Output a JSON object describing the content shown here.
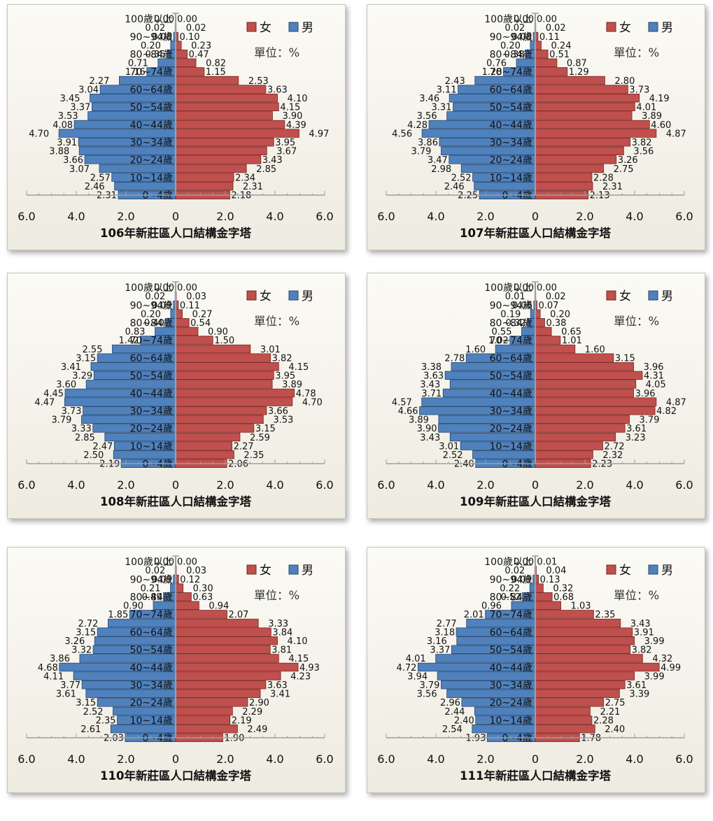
{
  "legend": {
    "female": "女",
    "male": "男"
  },
  "unit_label": "單位：%",
  "colors": {
    "female": "#c0504d",
    "male": "#4f81bd",
    "female_edge": "#7a2523",
    "male_edge": "#25466f",
    "axis": "#9aa0a6"
  },
  "age_labels": [
    "100歲以上",
    "90~94歲",
    "80~84歲",
    "70~74歲",
    "60~64歲",
    "50~54歲",
    "40~44歲",
    "30~34歲",
    "20~24歲",
    "10~14歲",
    "0~4歲"
  ],
  "chart_data": [
    {
      "type": "bar",
      "title": "106年新莊區人口結構金字塔",
      "xticks": [
        "6.0",
        "4.0",
        "2.0",
        "0",
        "2.0",
        "4.0",
        "6.0"
      ],
      "xlim": [
        -6,
        6
      ],
      "age_groups": [
        "100歲以上",
        "95~99歲",
        "90~94歲",
        "85~89歲",
        "80~84歲",
        "75~79歲",
        "70~74歲",
        "65~69歲",
        "60~64歲",
        "55~59歲",
        "50~54歲",
        "45~49歲",
        "40~44歲",
        "35~39歲",
        "30~34歲",
        "25~29歲",
        "20~24歲",
        "15~19歲",
        "10~14歲",
        "5~9歲",
        "0~4歲"
      ],
      "series": [
        {
          "name": "女",
          "values": [
            0.0,
            0.02,
            0.1,
            0.23,
            0.47,
            0.82,
            1.15,
            2.53,
            3.63,
            4.1,
            4.15,
            3.9,
            4.39,
            4.97,
            3.95,
            3.67,
            3.43,
            2.85,
            2.34,
            2.31,
            2.18
          ]
        },
        {
          "name": "男",
          "values": [
            0.0,
            0.02,
            0.08,
            0.2,
            0.35,
            0.71,
            1.16,
            2.27,
            3.04,
            3.45,
            3.37,
            3.53,
            4.08,
            4.7,
            3.91,
            3.88,
            3.66,
            3.07,
            2.57,
            2.46,
            2.31
          ]
        }
      ]
    },
    {
      "type": "bar",
      "title": "107年新莊區人口結構金字塔",
      "xticks": [
        "6.0",
        "4.0",
        "2.0",
        "0",
        "2.0",
        "4.0",
        "6.0"
      ],
      "xlim": [
        -6,
        6
      ],
      "age_groups": [
        "100歲以上",
        "95~99歲",
        "90~94歲",
        "85~89歲",
        "80~84歲",
        "75~79歲",
        "70~74歲",
        "65~69歲",
        "60~64歲",
        "55~59歲",
        "50~54歲",
        "45~49歲",
        "40~44歲",
        "35~39歲",
        "30~34歲",
        "25~29歲",
        "20~24歲",
        "15~19歲",
        "10~14歲",
        "5~9歲",
        "0~4歲"
      ],
      "series": [
        {
          "name": "女",
          "values": [
            0.0,
            0.02,
            0.11,
            0.24,
            0.51,
            0.87,
            1.29,
            2.8,
            3.73,
            4.19,
            4.01,
            3.89,
            4.6,
            4.87,
            3.82,
            3.56,
            3.26,
            2.75,
            2.28,
            2.31,
            2.13
          ]
        },
        {
          "name": "男",
          "values": [
            0.0,
            0.02,
            0.08,
            0.2,
            0.38,
            0.76,
            1.28,
            2.43,
            3.11,
            3.46,
            3.31,
            3.56,
            4.28,
            4.56,
            3.86,
            3.79,
            3.47,
            2.98,
            2.52,
            2.46,
            2.25
          ]
        }
      ]
    },
    {
      "type": "bar",
      "title": "108年新莊區人口結構金字塔",
      "xticks": [
        "6.0",
        "4.0",
        "2.0",
        "0",
        "2.0",
        "4.0",
        "6.0"
      ],
      "xlim": [
        -6,
        6
      ],
      "age_groups": [
        "100歲以上",
        "95~99歲",
        "90~94歲",
        "85~89歲",
        "80~84歲",
        "75~79歲",
        "70~74歲",
        "65~69歲",
        "60~64歲",
        "55~59歲",
        "50~54歲",
        "45~49歲",
        "40~44歲",
        "35~39歲",
        "30~34歲",
        "25~29歲",
        "20~24歲",
        "15~19歲",
        "10~14歲",
        "5~9歲",
        "0~4歲"
      ],
      "series": [
        {
          "name": "女",
          "values": [
            0.0,
            0.03,
            0.11,
            0.27,
            0.54,
            0.9,
            1.5,
            3.01,
            3.82,
            4.15,
            3.95,
            3.89,
            4.78,
            4.7,
            3.66,
            3.53,
            3.15,
            2.59,
            2.27,
            2.35,
            2.06
          ]
        },
        {
          "name": "男",
          "values": [
            0.0,
            0.02,
            0.09,
            0.2,
            0.4,
            0.83,
            1.42,
            2.55,
            3.15,
            3.41,
            3.29,
            3.6,
            4.45,
            4.47,
            3.73,
            3.79,
            3.33,
            2.85,
            2.47,
            2.5,
            2.19
          ]
        }
      ]
    },
    {
      "type": "bar",
      "title": "109年新莊區人口結構金字塔",
      "xticks": [
        "6.0",
        "4.0",
        "2.0",
        "0",
        "2.0",
        "4.0",
        "6.0"
      ],
      "xlim": [
        -6,
        6
      ],
      "age_groups": [
        "100歲以上",
        "95~99歲",
        "90~94歲",
        "85~89歲",
        "80~84歲",
        "75~79歲",
        "70~74歲",
        "65~69歲",
        "60~64歲",
        "55~59歲",
        "50~54歲",
        "45~49歲",
        "40~44歲",
        "35~39歲",
        "30~34歲",
        "25~29歲",
        "20~24歲",
        "15~19歲",
        "10~14歲",
        "5~9歲",
        "0~4歲"
      ],
      "series": [
        {
          "name": "女",
          "values": [
            0.0,
            0.02,
            0.07,
            0.2,
            0.38,
            0.65,
            1.01,
            1.6,
            3.15,
            3.96,
            4.31,
            4.05,
            3.96,
            4.87,
            4.82,
            3.79,
            3.61,
            3.23,
            2.72,
            2.32,
            2.23
          ]
        },
        {
          "name": "男",
          "values": [
            0.0,
            0.01,
            0.06,
            0.19,
            0.32,
            0.55,
            1.02,
            1.6,
            2.78,
            3.38,
            3.63,
            3.43,
            3.71,
            4.57,
            4.66,
            3.89,
            3.9,
            3.43,
            3.01,
            2.52,
            2.4
          ]
        }
      ]
    },
    {
      "type": "bar",
      "title": "110年新莊區人口結構金字塔",
      "xticks": [
        "6.0",
        "4.0",
        "2.0",
        "0",
        "2.0",
        "4.0",
        "6.0"
      ],
      "xlim": [
        -6,
        6
      ],
      "age_groups": [
        "100歲以上",
        "95~99歲",
        "90~94歲",
        "85~89歲",
        "80~84歲",
        "75~79歲",
        "70~74歲",
        "65~69歲",
        "60~64歲",
        "55~59歲",
        "50~54歲",
        "45~49歲",
        "40~44歲",
        "35~39歲",
        "30~34歲",
        "25~29歲",
        "20~24歲",
        "15~19歲",
        "10~14歲",
        "5~9歲",
        "0~4歲"
      ],
      "series": [
        {
          "name": "女",
          "values": [
            0.0,
            0.03,
            0.12,
            0.3,
            0.63,
            0.94,
            2.07,
            3.33,
            3.84,
            4.1,
            3.81,
            4.15,
            4.93,
            4.23,
            3.63,
            3.41,
            2.9,
            2.29,
            2.19,
            2.49,
            1.9
          ]
        },
        {
          "name": "男",
          "values": [
            0.0,
            0.02,
            0.09,
            0.21,
            0.49,
            0.9,
            1.85,
            2.72,
            3.15,
            3.26,
            3.32,
            3.86,
            4.68,
            4.11,
            3.77,
            3.61,
            3.15,
            2.52,
            2.35,
            2.61,
            2.03
          ]
        }
      ]
    },
    {
      "type": "bar",
      "title": "111年新莊區人口結構金字塔",
      "xticks": [
        "6.0",
        "4.0",
        "2.0",
        "0",
        "2.0",
        "4.0",
        "6.0"
      ],
      "xlim": [
        -6,
        6
      ],
      "age_groups": [
        "100歲以上",
        "95~99歲",
        "90~94歲",
        "85~89歲",
        "80~84歲",
        "75~79歲",
        "70~74歲",
        "65~69歲",
        "60~64歲",
        "55~59歲",
        "50~54歲",
        "45~49歲",
        "40~44歲",
        "35~39歲",
        "30~34歲",
        "25~29歲",
        "20~24歲",
        "15~19歲",
        "10~14歲",
        "5~9歲",
        "0~4歲"
      ],
      "series": [
        {
          "name": "女",
          "values": [
            0.01,
            0.04,
            0.13,
            0.32,
            0.68,
            1.03,
            2.35,
            3.43,
            3.91,
            3.99,
            3.82,
            4.32,
            4.99,
            3.99,
            3.61,
            3.39,
            2.75,
            2.21,
            2.28,
            2.4,
            1.78
          ]
        },
        {
          "name": "男",
          "values": [
            0.0,
            0.02,
            0.09,
            0.22,
            0.52,
            0.96,
            2.01,
            2.77,
            3.18,
            3.16,
            3.37,
            4.01,
            4.72,
            3.94,
            3.79,
            3.56,
            2.96,
            2.44,
            2.4,
            2.54,
            1.93
          ]
        }
      ]
    }
  ]
}
